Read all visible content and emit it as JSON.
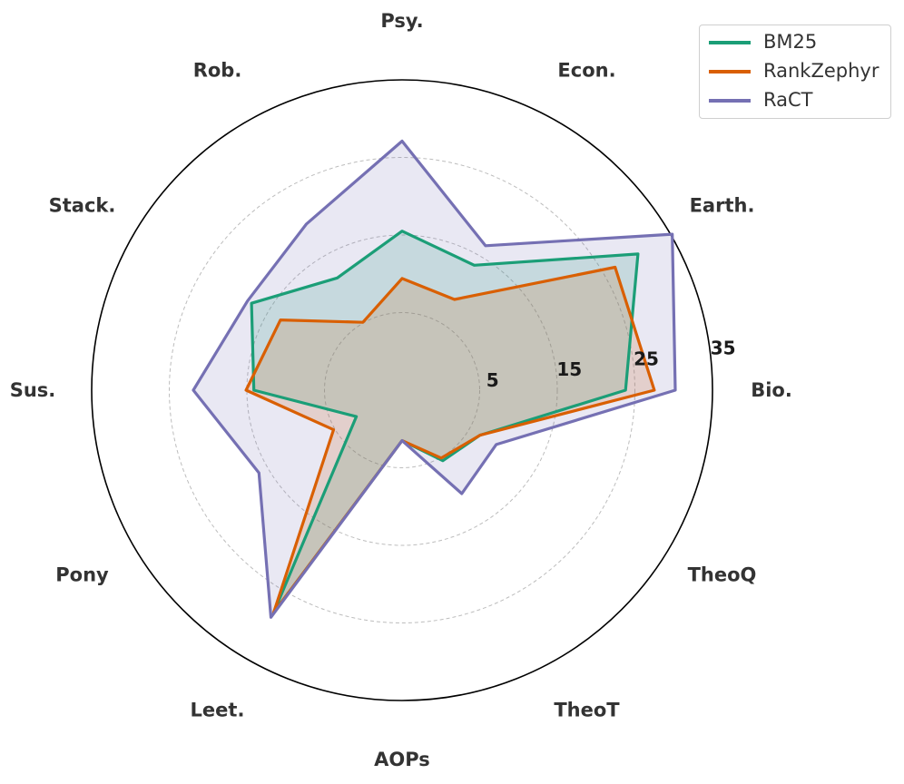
{
  "chart_data": {
    "type": "radar",
    "categories": [
      "Bio.",
      "Earth.",
      "Econ.",
      "Psy.",
      "Rob.",
      "Stack.",
      "Sus.",
      "Pony",
      "Leet.",
      "AOPs",
      "TheoT",
      "TheoQ"
    ],
    "radial_ticks": [
      5,
      15,
      25,
      35
    ],
    "radial_range": [
      -5,
      35
    ],
    "grid": true,
    "legend_position": "top-right",
    "series": [
      {
        "name": "BM25",
        "color": "#1b9e77",
        "values": [
          23.8,
          30.1,
          13.6,
          15.5,
          11.7,
          17.4,
          14.1,
          1.8,
          28.1,
          1.5,
          5.5,
          6.6
        ]
      },
      {
        "name": "RankZephyr",
        "color": "#d95f02",
        "values": [
          27.5,
          26.7,
          8.5,
          9.4,
          5.1,
          13.1,
          15.1,
          5.2,
          28.1,
          1.5,
          5.1,
          6.6
        ]
      },
      {
        "name": "RaCT",
        "color": "#7570b3",
        "values": [
          30.2,
          35.2,
          16.5,
          27.1,
          19.7,
          18.0,
          21.9,
          16.3,
          28.8,
          1.5,
          10.4,
          9.0
        ]
      }
    ]
  }
}
